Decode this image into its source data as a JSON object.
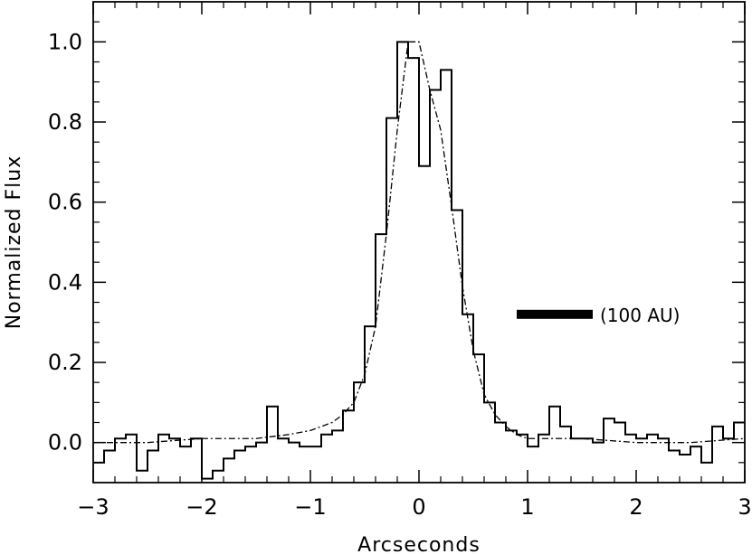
{
  "chart_data": {
    "type": "line",
    "title": "",
    "xlabel": "Arcseconds",
    "ylabel": "Normalized Flux",
    "xlim": [
      -3,
      3
    ],
    "ylim": [
      -0.1,
      1.1
    ],
    "x_ticks": [
      -3,
      -2,
      -1,
      0,
      1,
      2,
      3
    ],
    "x_tick_labels": [
      "−3",
      "−2",
      "−1",
      "0",
      "1",
      "2",
      "3"
    ],
    "y_ticks": [
      0.0,
      0.2,
      0.4,
      0.6,
      0.8,
      1.0
    ],
    "y_tick_labels": [
      "0.0",
      "0.2",
      "0.4",
      "0.6",
      "0.8",
      "1.0"
    ],
    "grid": false,
    "step_width": 0.1,
    "series": [
      {
        "style": "solid-step",
        "x": [
          -3.0,
          -2.9,
          -2.8,
          -2.7,
          -2.6,
          -2.5,
          -2.4,
          -2.3,
          -2.2,
          -2.1,
          -2.0,
          -1.9,
          -1.8,
          -1.7,
          -1.6,
          -1.5,
          -1.4,
          -1.3,
          -1.2,
          -1.1,
          -1.0,
          -0.9,
          -0.8,
          -0.7,
          -0.6,
          -0.5,
          -0.4,
          -0.3,
          -0.2,
          -0.1,
          0.0,
          0.1,
          0.2,
          0.3,
          0.4,
          0.5,
          0.6,
          0.7,
          0.8,
          0.9,
          1.0,
          1.1,
          1.2,
          1.3,
          1.4,
          1.5,
          1.6,
          1.7,
          1.8,
          1.9,
          2.0,
          2.1,
          2.2,
          2.3,
          2.4,
          2.5,
          2.6,
          2.7,
          2.8,
          2.9
        ],
        "y": [
          -0.05,
          -0.02,
          0.01,
          0.02,
          -0.07,
          -0.02,
          0.02,
          0.01,
          -0.01,
          0.01,
          -0.09,
          -0.07,
          -0.04,
          -0.02,
          -0.01,
          0.0,
          0.09,
          0.01,
          0.0,
          -0.01,
          -0.01,
          0.02,
          0.03,
          0.08,
          0.15,
          0.29,
          0.52,
          0.81,
          1.0,
          0.96,
          0.69,
          0.88,
          0.93,
          0.58,
          0.32,
          0.22,
          0.1,
          0.05,
          0.03,
          0.02,
          -0.01,
          0.02,
          0.09,
          0.04,
          0.01,
          0.01,
          0.0,
          0.06,
          0.05,
          0.02,
          0.01,
          0.02,
          0.01,
          -0.02,
          -0.03,
          -0.01,
          -0.05,
          0.04,
          0.01,
          0.05
        ]
      },
      {
        "style": "dash-dot",
        "x": [
          -3.0,
          -2.5,
          -2.0,
          -1.5,
          -1.2,
          -1.0,
          -0.9,
          -0.8,
          -0.7,
          -0.6,
          -0.5,
          -0.4,
          -0.3,
          -0.2,
          -0.1,
          0.0,
          0.1,
          0.2,
          0.3,
          0.4,
          0.5,
          0.6,
          0.7,
          0.8,
          0.9,
          1.0,
          1.5,
          2.0,
          2.5,
          3.0
        ],
        "y": [
          0.0,
          0.0,
          0.01,
          0.01,
          0.02,
          0.03,
          0.04,
          0.05,
          0.07,
          0.1,
          0.17,
          0.29,
          0.52,
          0.78,
          1.0,
          1.0,
          0.88,
          0.78,
          0.59,
          0.39,
          0.23,
          0.12,
          0.07,
          0.04,
          0.02,
          0.01,
          0.01,
          0.0,
          0.0,
          0.01
        ]
      }
    ],
    "annotation": {
      "text": "(100 AU)",
      "bar_x": [
        0.9,
        1.6
      ],
      "bar_y": 0.32
    }
  }
}
